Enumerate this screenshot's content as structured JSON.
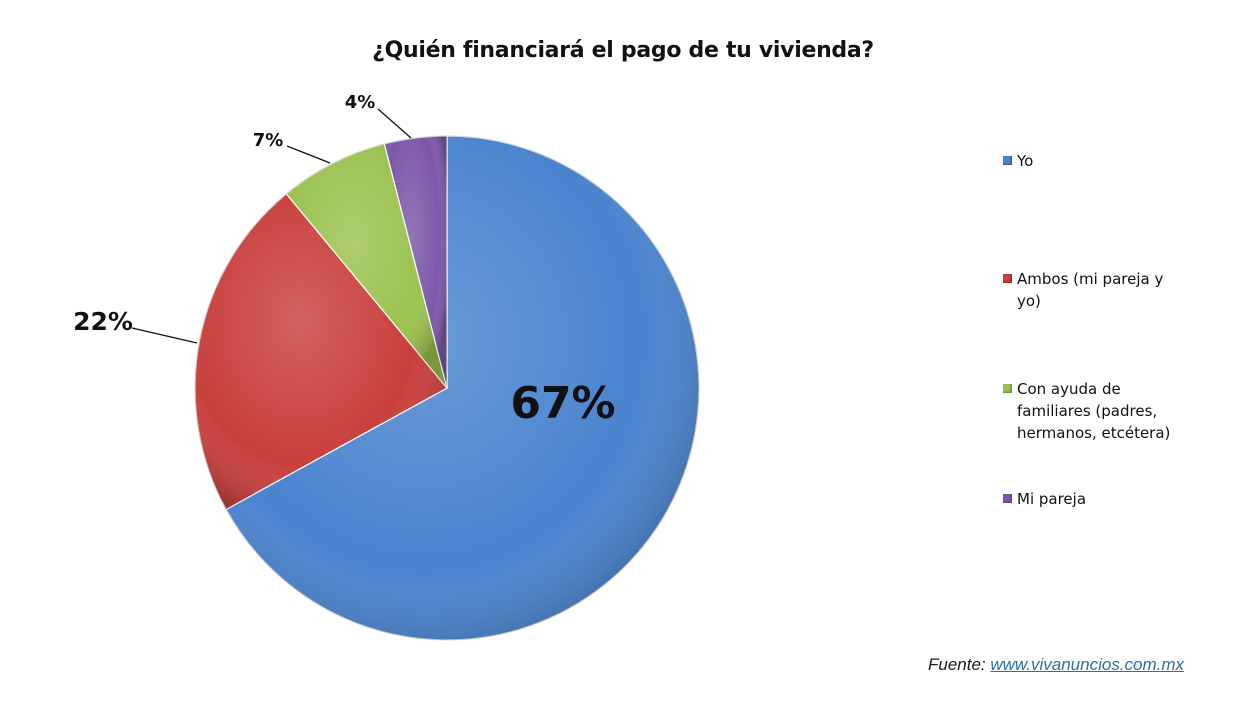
{
  "chart_data": {
    "type": "pie",
    "title": "¿Quién financiará el pago de tu vivienda?",
    "slices": [
      {
        "label": "Yo",
        "value": 67,
        "value_label": "67%",
        "color": "#4a84cf"
      },
      {
        "label": "Ambos (mi pareja y yo)",
        "value": 22,
        "value_label": "22%",
        "color": "#c9403c"
      },
      {
        "label": "Con ayuda de familiares (padres, hermanos, etcétera)",
        "value": 7,
        "value_label": "7%",
        "color": "#9bc24f"
      },
      {
        "label": "Mi pareja",
        "value": 4,
        "value_label": "4%",
        "color": "#7d58a8"
      }
    ],
    "legend_position": "right",
    "legend": [
      [
        "Yo"
      ],
      [
        "Ambos (mi pareja y",
        "yo)"
      ],
      [
        "Con ayuda de",
        "familiares (padres,",
        "hermanos, etcétera)"
      ],
      [
        "Mi pareja"
      ]
    ]
  },
  "source": {
    "prefix": "Fuente: ",
    "link_text": "www.vivanuncios.com.mx"
  }
}
